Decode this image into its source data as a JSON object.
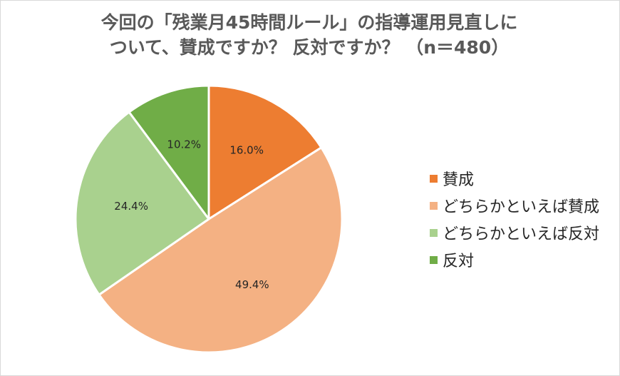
{
  "chart_data": {
    "type": "pie",
    "title": [
      "今回の「残業月45時間ルール」の指導運用見直しに",
      "ついて、賛成ですか？ 反対ですか？ （n＝480）"
    ],
    "categories": [
      "賛成",
      "どちらかといえば賛成",
      "どちらかといえば反対",
      "反対"
    ],
    "values": [
      16.0,
      49.4,
      24.4,
      10.2
    ],
    "data_labels": [
      "16.0%",
      "49.4%",
      "24.4%",
      "10.2%"
    ],
    "colors": [
      "#ed7d31",
      "#f4b183",
      "#a9d18e",
      "#70ad47"
    ],
    "legend_position": "right",
    "start_angle": "top",
    "direction": "clockwise"
  }
}
